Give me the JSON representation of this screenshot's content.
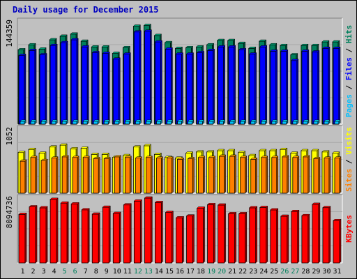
{
  "title": "Daily usage for December 2015",
  "colors": {
    "background": "#c0c0c0",
    "title": "#0000c0",
    "hits": "#00805c",
    "files": "#0000ff",
    "pages": "#00c0ff",
    "visits": "#ffff00",
    "sites": "#ff8000",
    "kbytes": "#ff0000",
    "weekend_day": "#00805c",
    "weekday": "#000000"
  },
  "legend": {
    "top": [
      {
        "text": "Pages",
        "color": "#00c0ff"
      },
      {
        "text": " / ",
        "color": "#000000"
      },
      {
        "text": "Files",
        "color": "#0000ff"
      },
      {
        "text": " / ",
        "color": "#000000"
      },
      {
        "text": "Hits",
        "color": "#00805c"
      }
    ],
    "middle": [
      {
        "text": "Sites",
        "color": "#ff8000"
      },
      {
        "text": " / ",
        "color": "#000000"
      },
      {
        "text": "Visits",
        "color": "#ffff00"
      }
    ],
    "bottom": [
      {
        "text": "KBytes",
        "color": "#ff0000"
      }
    ]
  },
  "chart_data": {
    "type": "bar",
    "title": "Daily usage for December 2015",
    "categories": [
      "1",
      "2",
      "3",
      "4",
      "5",
      "6",
      "7",
      "8",
      "9",
      "10",
      "11",
      "12",
      "13",
      "14",
      "15",
      "16",
      "17",
      "18",
      "19",
      "20",
      "21",
      "22",
      "23",
      "24",
      "25",
      "26",
      "27",
      "28",
      "29",
      "30",
      "31"
    ],
    "weekend_days": [
      "5",
      "6",
      "12",
      "13",
      "19",
      "20",
      "26",
      "27"
    ],
    "panels": [
      {
        "name": "hits-files-pages",
        "ymax_label": "144359",
        "ymax": 144359,
        "series": [
          {
            "name": "Hits",
            "values": [
              104000,
              111000,
              105000,
              118000,
              123000,
              126000,
              116000,
              108000,
              108000,
              99000,
              107000,
              137000,
              138000,
              124000,
              114000,
              106000,
              107000,
              108000,
              111000,
              117000,
              117000,
              113000,
              106000,
              116000,
              111000,
              110000,
              97000,
              110000,
              110000,
              115000,
              115000
            ]
          },
          {
            "name": "Files",
            "values": [
              96000,
              103000,
              97000,
              110000,
              114000,
              118000,
              108000,
              100000,
              99000,
              91000,
              98000,
              129000,
              130000,
              115000,
              105000,
              98000,
              98000,
              100000,
              103000,
              108000,
              108000,
              104000,
              98000,
              108000,
              102000,
              102000,
              89000,
              102000,
              101000,
              106000,
              106000
            ]
          },
          {
            "name": "Pages",
            "values": [
              4000,
              4000,
              4000,
              4000,
              4000,
              4000,
              4000,
              4000,
              4000,
              4000,
              4000,
              4000,
              4000,
              4000,
              4000,
              4000,
              4000,
              4000,
              4000,
              4000,
              4000,
              4000,
              4000,
              4000,
              4000,
              4000,
              4000,
              4000,
              4000,
              4000,
              4000
            ]
          }
        ]
      },
      {
        "name": "visits-sites",
        "ymax_label": "1052",
        "ymax": 1052,
        "series": [
          {
            "name": "Visits",
            "values": [
              660,
              710,
              650,
              750,
              780,
              720,
              730,
              630,
              630,
              580,
              610,
              750,
              770,
              630,
              580,
              570,
              650,
              670,
              670,
              690,
              690,
              660,
              610,
              690,
              690,
              710,
              650,
              690,
              690,
              670,
              650
            ]
          },
          {
            "name": "Sites",
            "values": [
              520,
              580,
              530,
              570,
              590,
              580,
              580,
              560,
              560,
              590,
              580,
              570,
              580,
              570,
              570,
              550,
              560,
              580,
              580,
              600,
              600,
              580,
              550,
              580,
              580,
              590,
              580,
              590,
              560,
              570,
              570
            ]
          }
        ]
      },
      {
        "name": "kbytes",
        "ymax_label": "8094736",
        "ymax": 8094736,
        "series": [
          {
            "name": "KBytes",
            "values": [
              6000000,
              6930000,
              6810000,
              7850000,
              7390000,
              7290000,
              6560000,
              6030000,
              6880000,
              6120000,
              7170000,
              7640000,
              8010000,
              7460000,
              6240000,
              5570000,
              5800000,
              6760000,
              7200000,
              7150000,
              6080000,
              6080000,
              6810000,
              6850000,
              6550000,
              5770000,
              6350000,
              5840000,
              7240000,
              6830000,
              5230000
            ]
          }
        ]
      }
    ]
  }
}
